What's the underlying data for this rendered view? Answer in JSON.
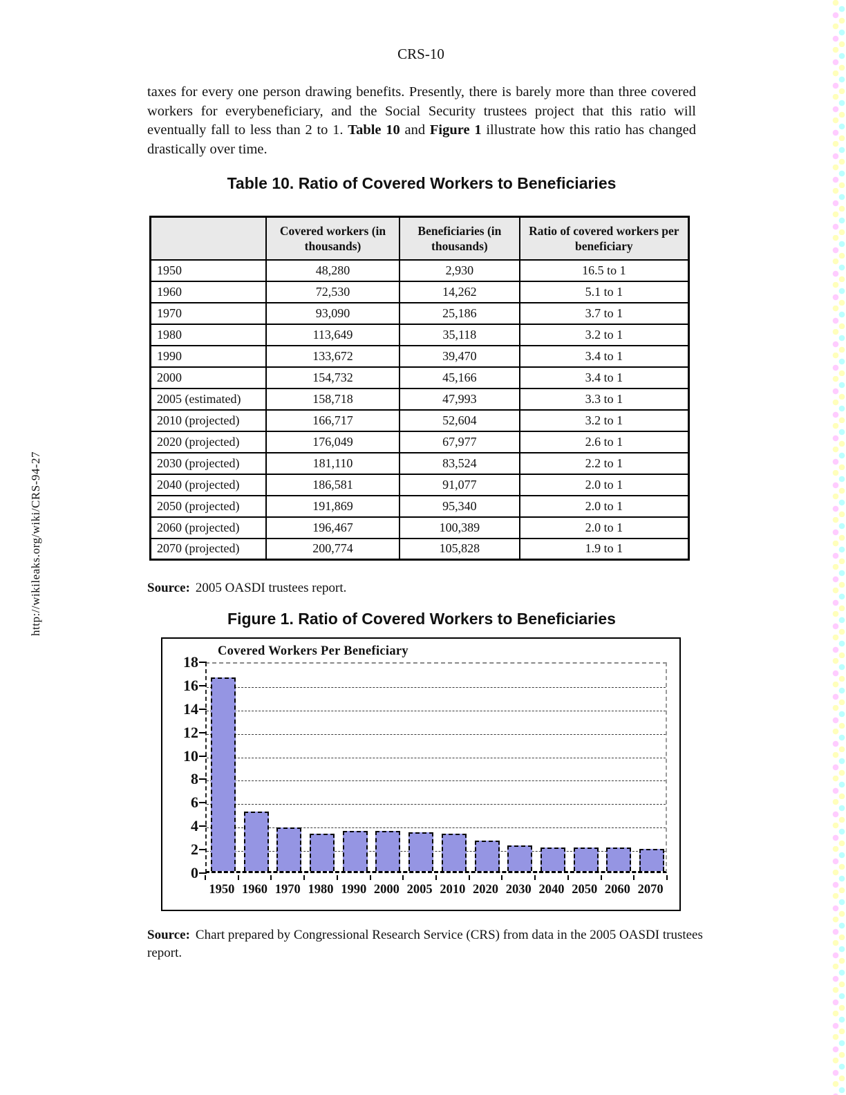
{
  "page": {
    "page_number": "CRS-10",
    "sidebar_url": "http://wikileaks.org/wiki/CRS-94-27"
  },
  "paragraph": {
    "segments": [
      {
        "text": "taxes for every one person drawing benefits.  Presently, there is barely more than three covered workers for everybeneficiary, and the Social Security trustees project that this ratio will eventually fall to less than 2 to 1.  ",
        "bold": false
      },
      {
        "text": "Table 10",
        "bold": true
      },
      {
        "text": " and ",
        "bold": false
      },
      {
        "text": "Figure 1",
        "bold": true
      },
      {
        "text": " illustrate how this ratio has changed drastically over time.",
        "bold": false
      }
    ]
  },
  "table": {
    "title": "Table 10.  Ratio of Covered Workers to Beneficiaries",
    "columns": [
      "",
      "Covered workers (in thousands)",
      "Beneficiaries (in thousands)",
      "Ratio of covered workers per beneficiary"
    ],
    "rows": [
      [
        "1950",
        "48,280",
        "2,930",
        "16.5 to 1"
      ],
      [
        "1960",
        "72,530",
        "14,262",
        "5.1 to 1"
      ],
      [
        "1970",
        "93,090",
        "25,186",
        "3.7 to 1"
      ],
      [
        "1980",
        "113,649",
        "35,118",
        "3.2 to 1"
      ],
      [
        "1990",
        "133,672",
        "39,470",
        "3.4 to 1"
      ],
      [
        "2000",
        "154,732",
        "45,166",
        "3.4 to 1"
      ],
      [
        "2005 (estimated)",
        "158,718",
        "47,993",
        "3.3 to 1"
      ],
      [
        "2010 (projected)",
        "166,717",
        "52,604",
        "3.2 to 1"
      ],
      [
        "2020 (projected)",
        "176,049",
        "67,977",
        "2.6 to 1"
      ],
      [
        "2030 (projected)",
        "181,110",
        "83,524",
        "2.2 to 1"
      ],
      [
        "2040 (projected)",
        "186,581",
        "91,077",
        "2.0 to 1"
      ],
      [
        "2050 (projected)",
        "191,869",
        "95,340",
        "2.0 to 1"
      ],
      [
        "2060 (projected)",
        "196,467",
        "100,389",
        "2.0 to 1"
      ],
      [
        "2070 (projected)",
        "200,774",
        "105,828",
        "1.9 to 1"
      ]
    ],
    "source_label": "Source:",
    "source_text": "2005 OASDI trustees report."
  },
  "figure": {
    "title": "Figure 1. Ratio of Covered Workers to Beneficiaries",
    "source_label": "Source:",
    "source_text": "Chart prepared by Congressional Research Service (CRS) from data in the 2005 OASDI trustees report."
  },
  "chart_data": {
    "type": "bar",
    "title": "Covered Workers Per Beneficiary",
    "categories": [
      "1950",
      "1960",
      "1970",
      "1980",
      "1990",
      "2000",
      "2005",
      "2010",
      "2020",
      "2030",
      "2040",
      "2050",
      "2060",
      "2070"
    ],
    "values": [
      16.5,
      5.1,
      3.7,
      3.2,
      3.4,
      3.4,
      3.3,
      3.2,
      2.6,
      2.2,
      2.0,
      2.0,
      2.0,
      1.9
    ],
    "title_position": "top-left-inside",
    "xlabel": "",
    "ylabel": "",
    "ylim": [
      0,
      18
    ],
    "ytick_step": 2,
    "grid": true,
    "grid_style": "dashed",
    "bar_color": "#9595e3",
    "legend_position": "none"
  },
  "colors": {
    "bar_fill": "#9595e3",
    "table_header_bg": "#e9e9e9",
    "text": "#111111",
    "wm_yellow": "#ffffbb",
    "wm_cyan": "#bbffff",
    "wm_pink": "#ffccff"
  }
}
